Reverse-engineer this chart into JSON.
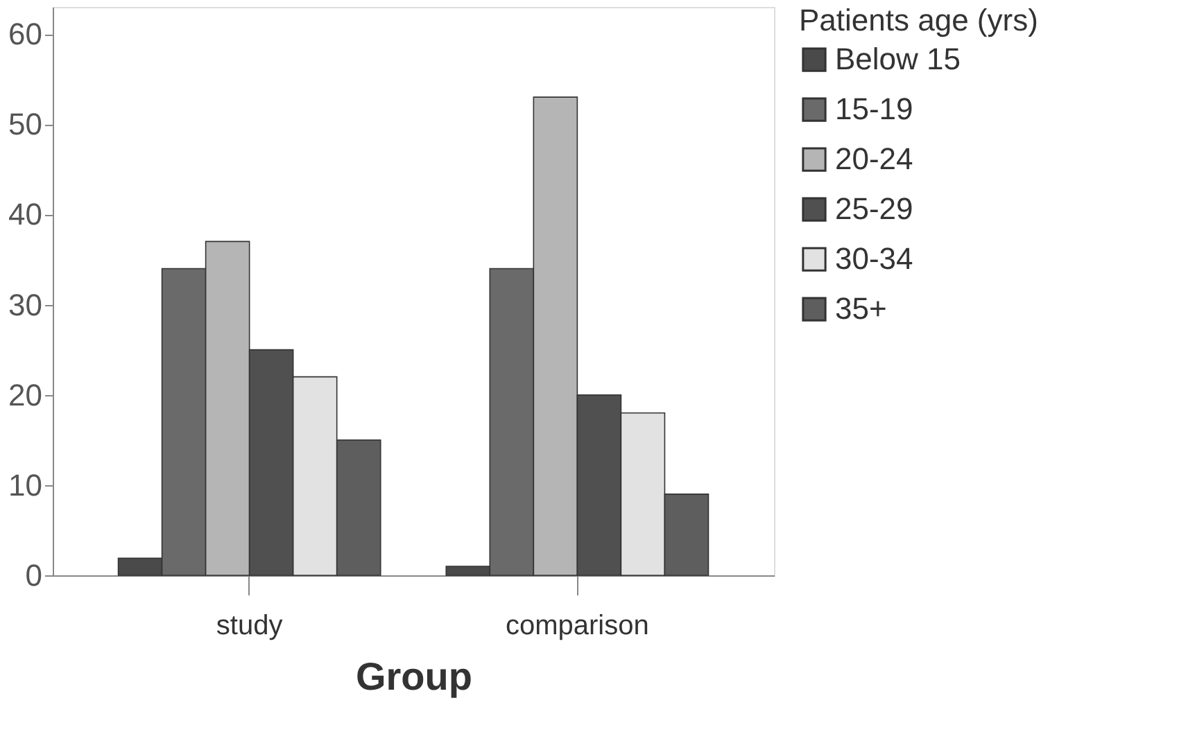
{
  "chart_data": {
    "type": "bar",
    "xlabel": "Group",
    "legend_title": "Patients age (yrs)",
    "categories": [
      "study",
      "comparison"
    ],
    "series": [
      {
        "name": "Below 15",
        "color": "#4a4a4a",
        "values": [
          1.9,
          1
        ]
      },
      {
        "name": "15-19",
        "color": "#6a6a6a",
        "values": [
          34,
          34
        ]
      },
      {
        "name": "20-24",
        "color": "#b5b5b5",
        "values": [
          37,
          53
        ]
      },
      {
        "name": "25-29",
        "color": "#505050",
        "values": [
          25,
          20
        ]
      },
      {
        "name": "30-34",
        "color": "#e2e2e2",
        "values": [
          22,
          18
        ]
      },
      {
        "name": "35+",
        "color": "#5e5e5e",
        "values": [
          15,
          9
        ]
      }
    ],
    "ylim": [
      0,
      63
    ],
    "yticks": [
      0,
      10,
      20,
      30,
      40,
      50,
      60
    ],
    "grid": false,
    "legend": "right"
  }
}
